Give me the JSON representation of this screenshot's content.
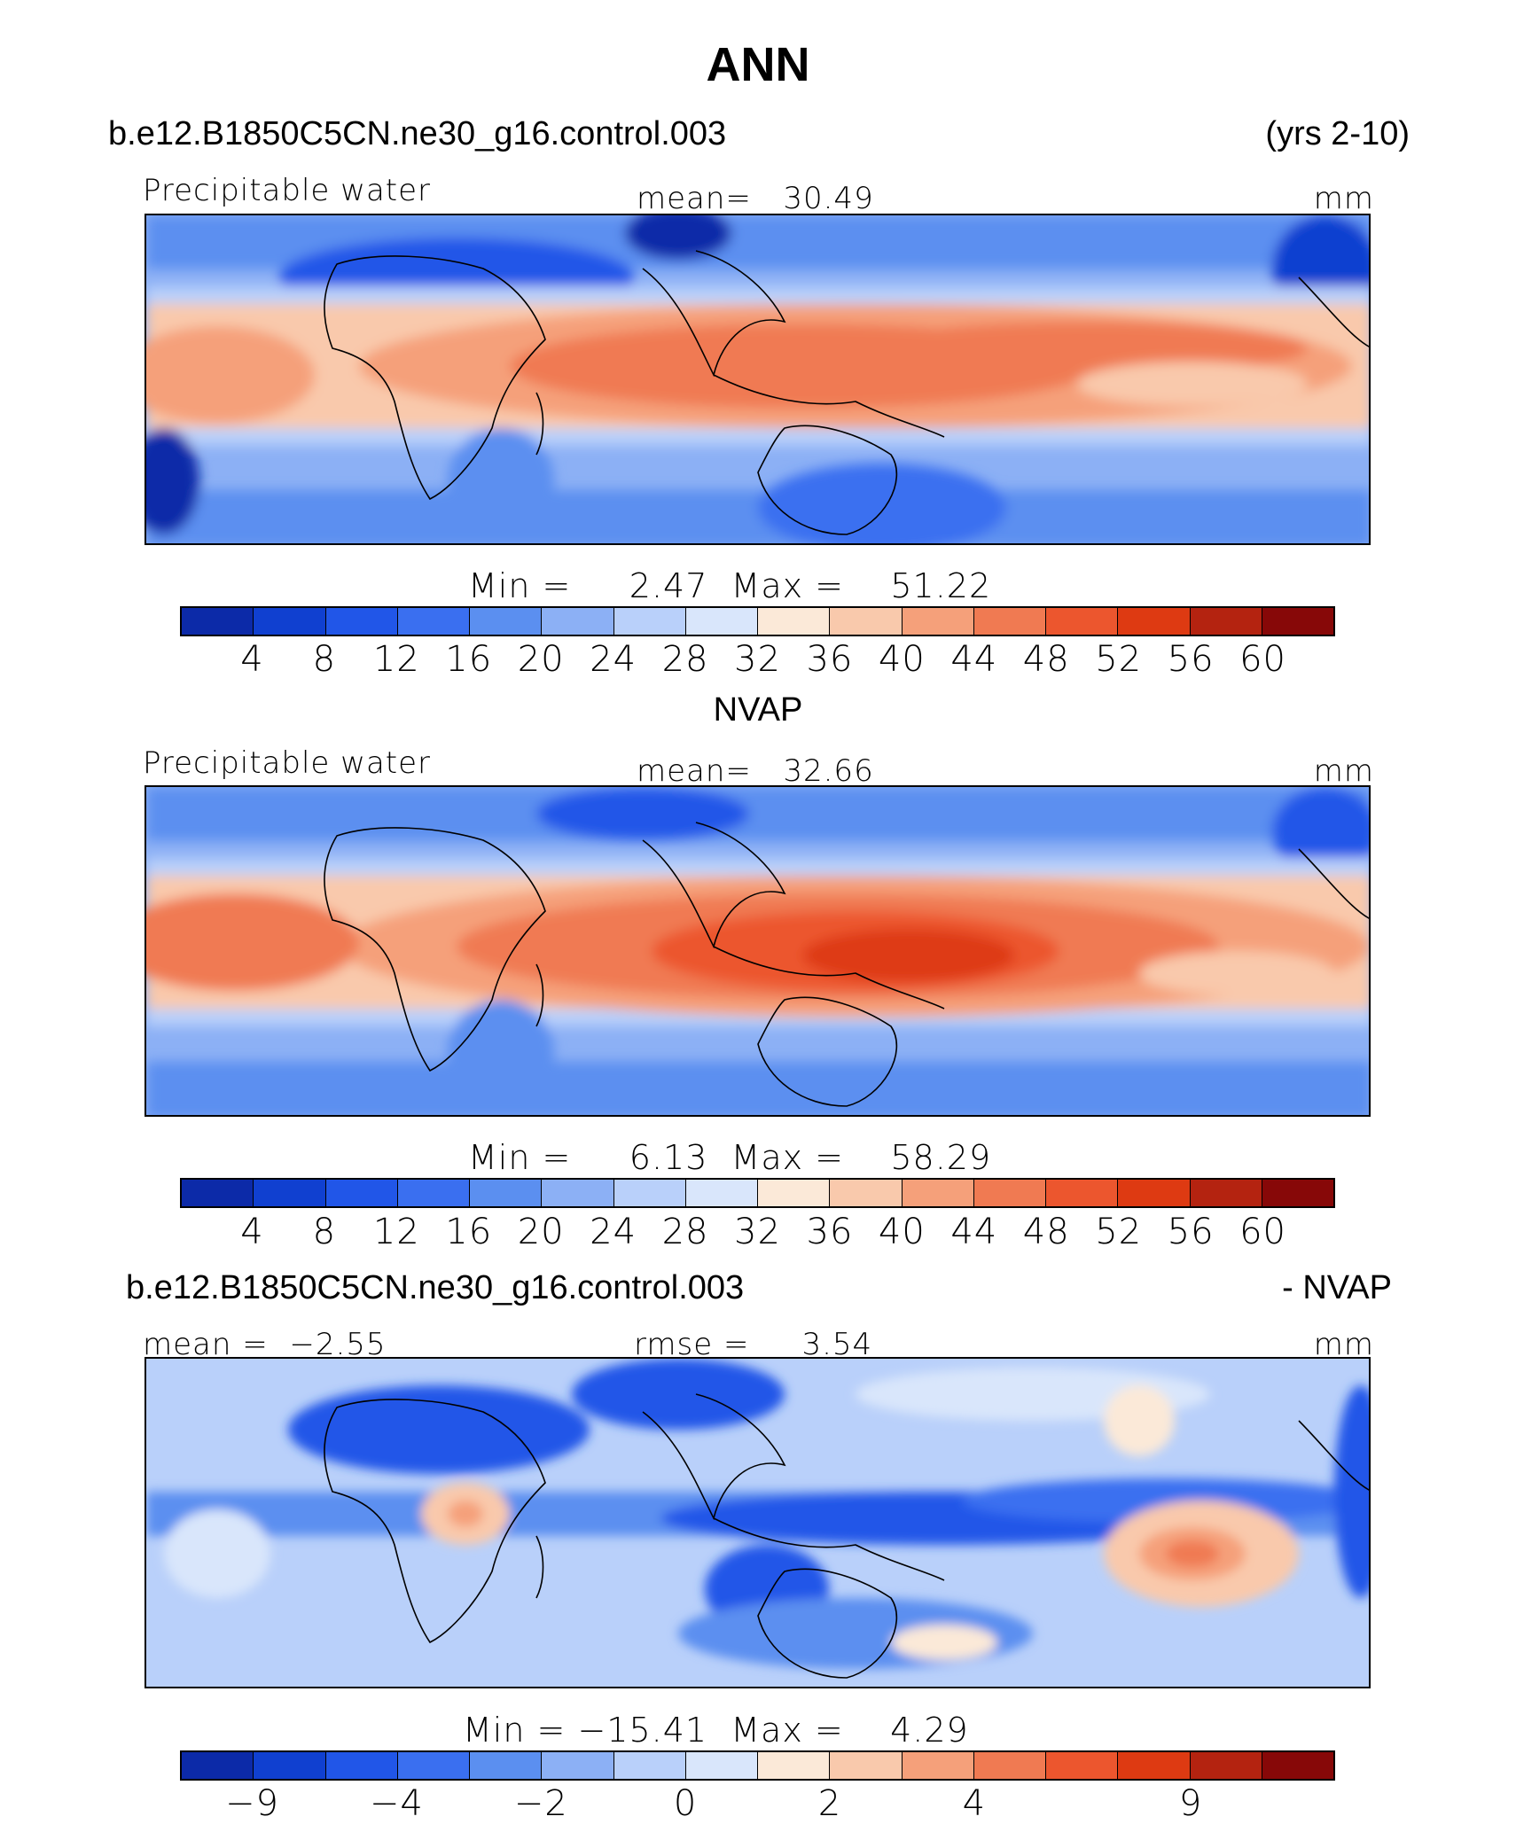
{
  "title": "ANN",
  "case_name": "b.e12.B1850C5CN.ne30_g16.control.003",
  "years": "(yrs 2-10)",
  "colors": [
    "#0a0a8c",
    "#0c2aa8",
    "#1040d0",
    "#2156e8",
    "#3a6ff0",
    "#5b8ff0",
    "#8cb0f5",
    "#b9d0fa",
    "#d9e6fb",
    "#fbe9d8",
    "#f9c9ac",
    "#f5a07a",
    "#f07a52",
    "#ec562e",
    "#de3a12",
    "#b42310",
    "#870808"
  ],
  "panel1": {
    "variable": "Precipitable water",
    "mean_label": "mean=",
    "mean_value": "30.49",
    "units": "mm",
    "min_label": "Min  =",
    "min_value": "2.47",
    "max_label": "Max  =",
    "max_value": "51.22",
    "ticks": [
      "4",
      "8",
      "12",
      "16",
      "20",
      "24",
      "28",
      "32",
      "36",
      "40",
      "44",
      "48",
      "52",
      "56",
      "60"
    ]
  },
  "panel2": {
    "heading": "NVAP",
    "variable": "Precipitable water",
    "mean_label": "mean=",
    "mean_value": "32.66",
    "units": "mm",
    "min_label": "Min  =",
    "min_value": "6.13",
    "max_label": "Max  =",
    "max_value": "58.29",
    "ticks": [
      "4",
      "8",
      "12",
      "16",
      "20",
      "24",
      "28",
      "32",
      "36",
      "40",
      "44",
      "48",
      "52",
      "56",
      "60"
    ]
  },
  "panel3": {
    "case_name": "b.e12.B1850C5CN.ne30_g16.control.003",
    "suffix": "- NVAP",
    "mean_label": "mean  =",
    "mean_value": "−2.55",
    "rmse_label": "rmse  =",
    "rmse_value": "3.54",
    "units": "mm",
    "min_label": "Min  =",
    "min_value": "−15.41",
    "max_label": "Max  =",
    "max_value": "4.29",
    "ticks": [
      "−9",
      "−4",
      "−2",
      "0",
      "2",
      "4",
      "9"
    ]
  }
}
